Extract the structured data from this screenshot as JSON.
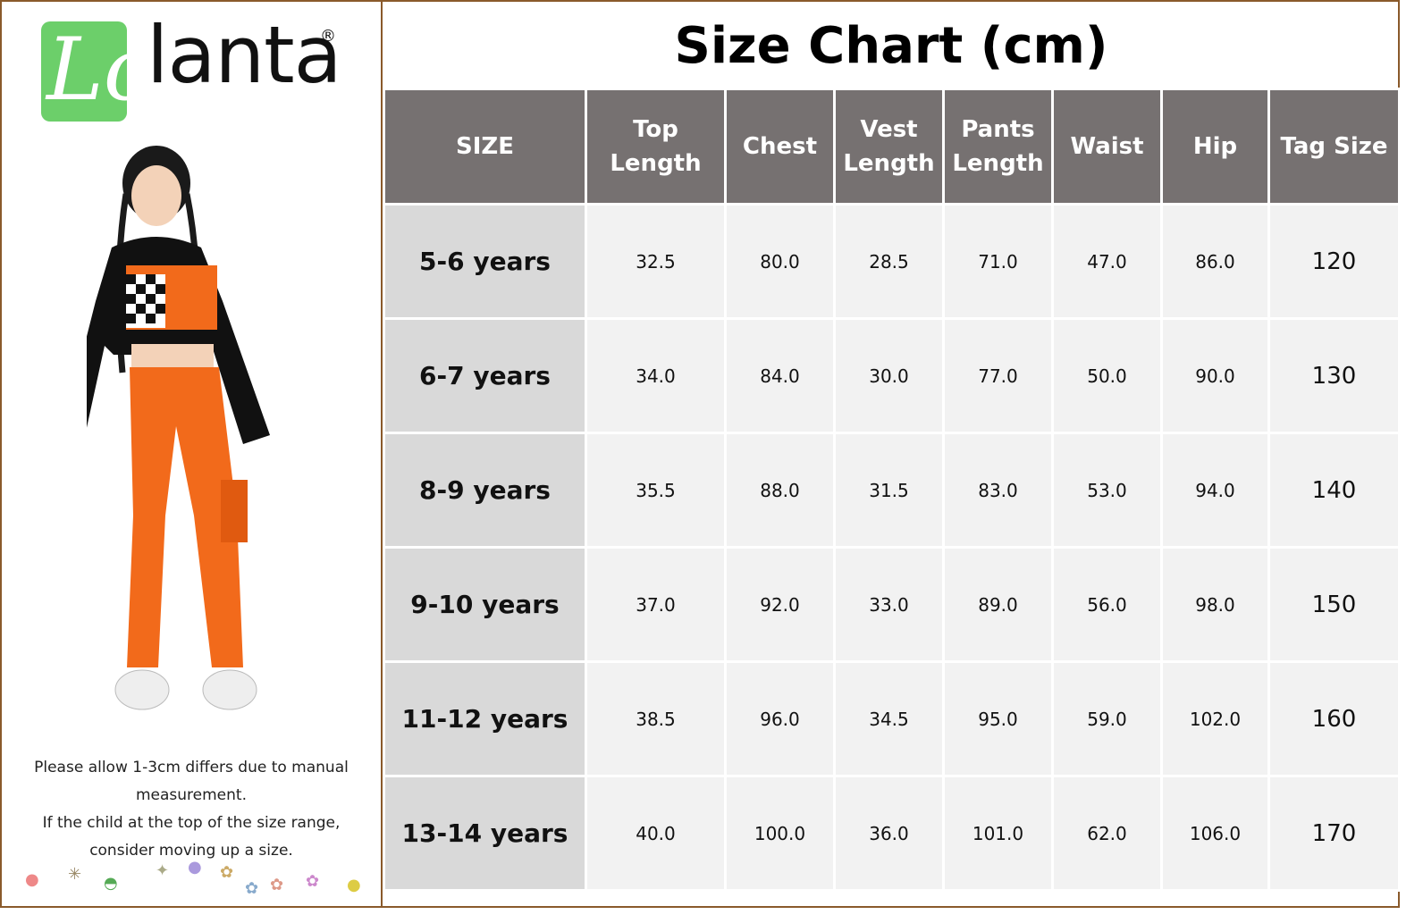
{
  "brand": {
    "logo_letter": "Lo",
    "logo_text": "lanta",
    "registered_mark": "®"
  },
  "title": "Size Chart (cm)",
  "note": {
    "line1": "Please allow 1-3cm differs due to manual measurement.",
    "line2": "If the child at the top of the size range, consider moving up a size."
  },
  "colors": {
    "header_bg": "#767171",
    "size_col_bg": "#d9d9d9",
    "cell_bg": "#f2f2f2",
    "logo_green": "#6ccf6a",
    "border": "#8a5a2b"
  },
  "table": {
    "headers": [
      "SIZE",
      "Top Length",
      "Chest",
      "Vest Length",
      "Pants Length",
      "Waist",
      "Hip",
      "Tag Size"
    ],
    "rows": [
      [
        "5-6 years",
        "32.5",
        "80.0",
        "28.5",
        "71.0",
        "47.0",
        "86.0",
        "120"
      ],
      [
        "6-7 years",
        "34.0",
        "84.0",
        "30.0",
        "77.0",
        "50.0",
        "90.0",
        "130"
      ],
      [
        "8-9 years",
        "35.5",
        "88.0",
        "31.5",
        "83.0",
        "53.0",
        "94.0",
        "140"
      ],
      [
        "9-10 years",
        "37.0",
        "92.0",
        "33.0",
        "89.0",
        "56.0",
        "98.0",
        "150"
      ],
      [
        "11-12 years",
        "38.5",
        "96.0",
        "34.5",
        "95.0",
        "59.0",
        "102.0",
        "160"
      ],
      [
        "13-14  years",
        "40.0",
        "100.0",
        "36.0",
        "101.0",
        "62.0",
        "106.0",
        "170"
      ]
    ]
  }
}
